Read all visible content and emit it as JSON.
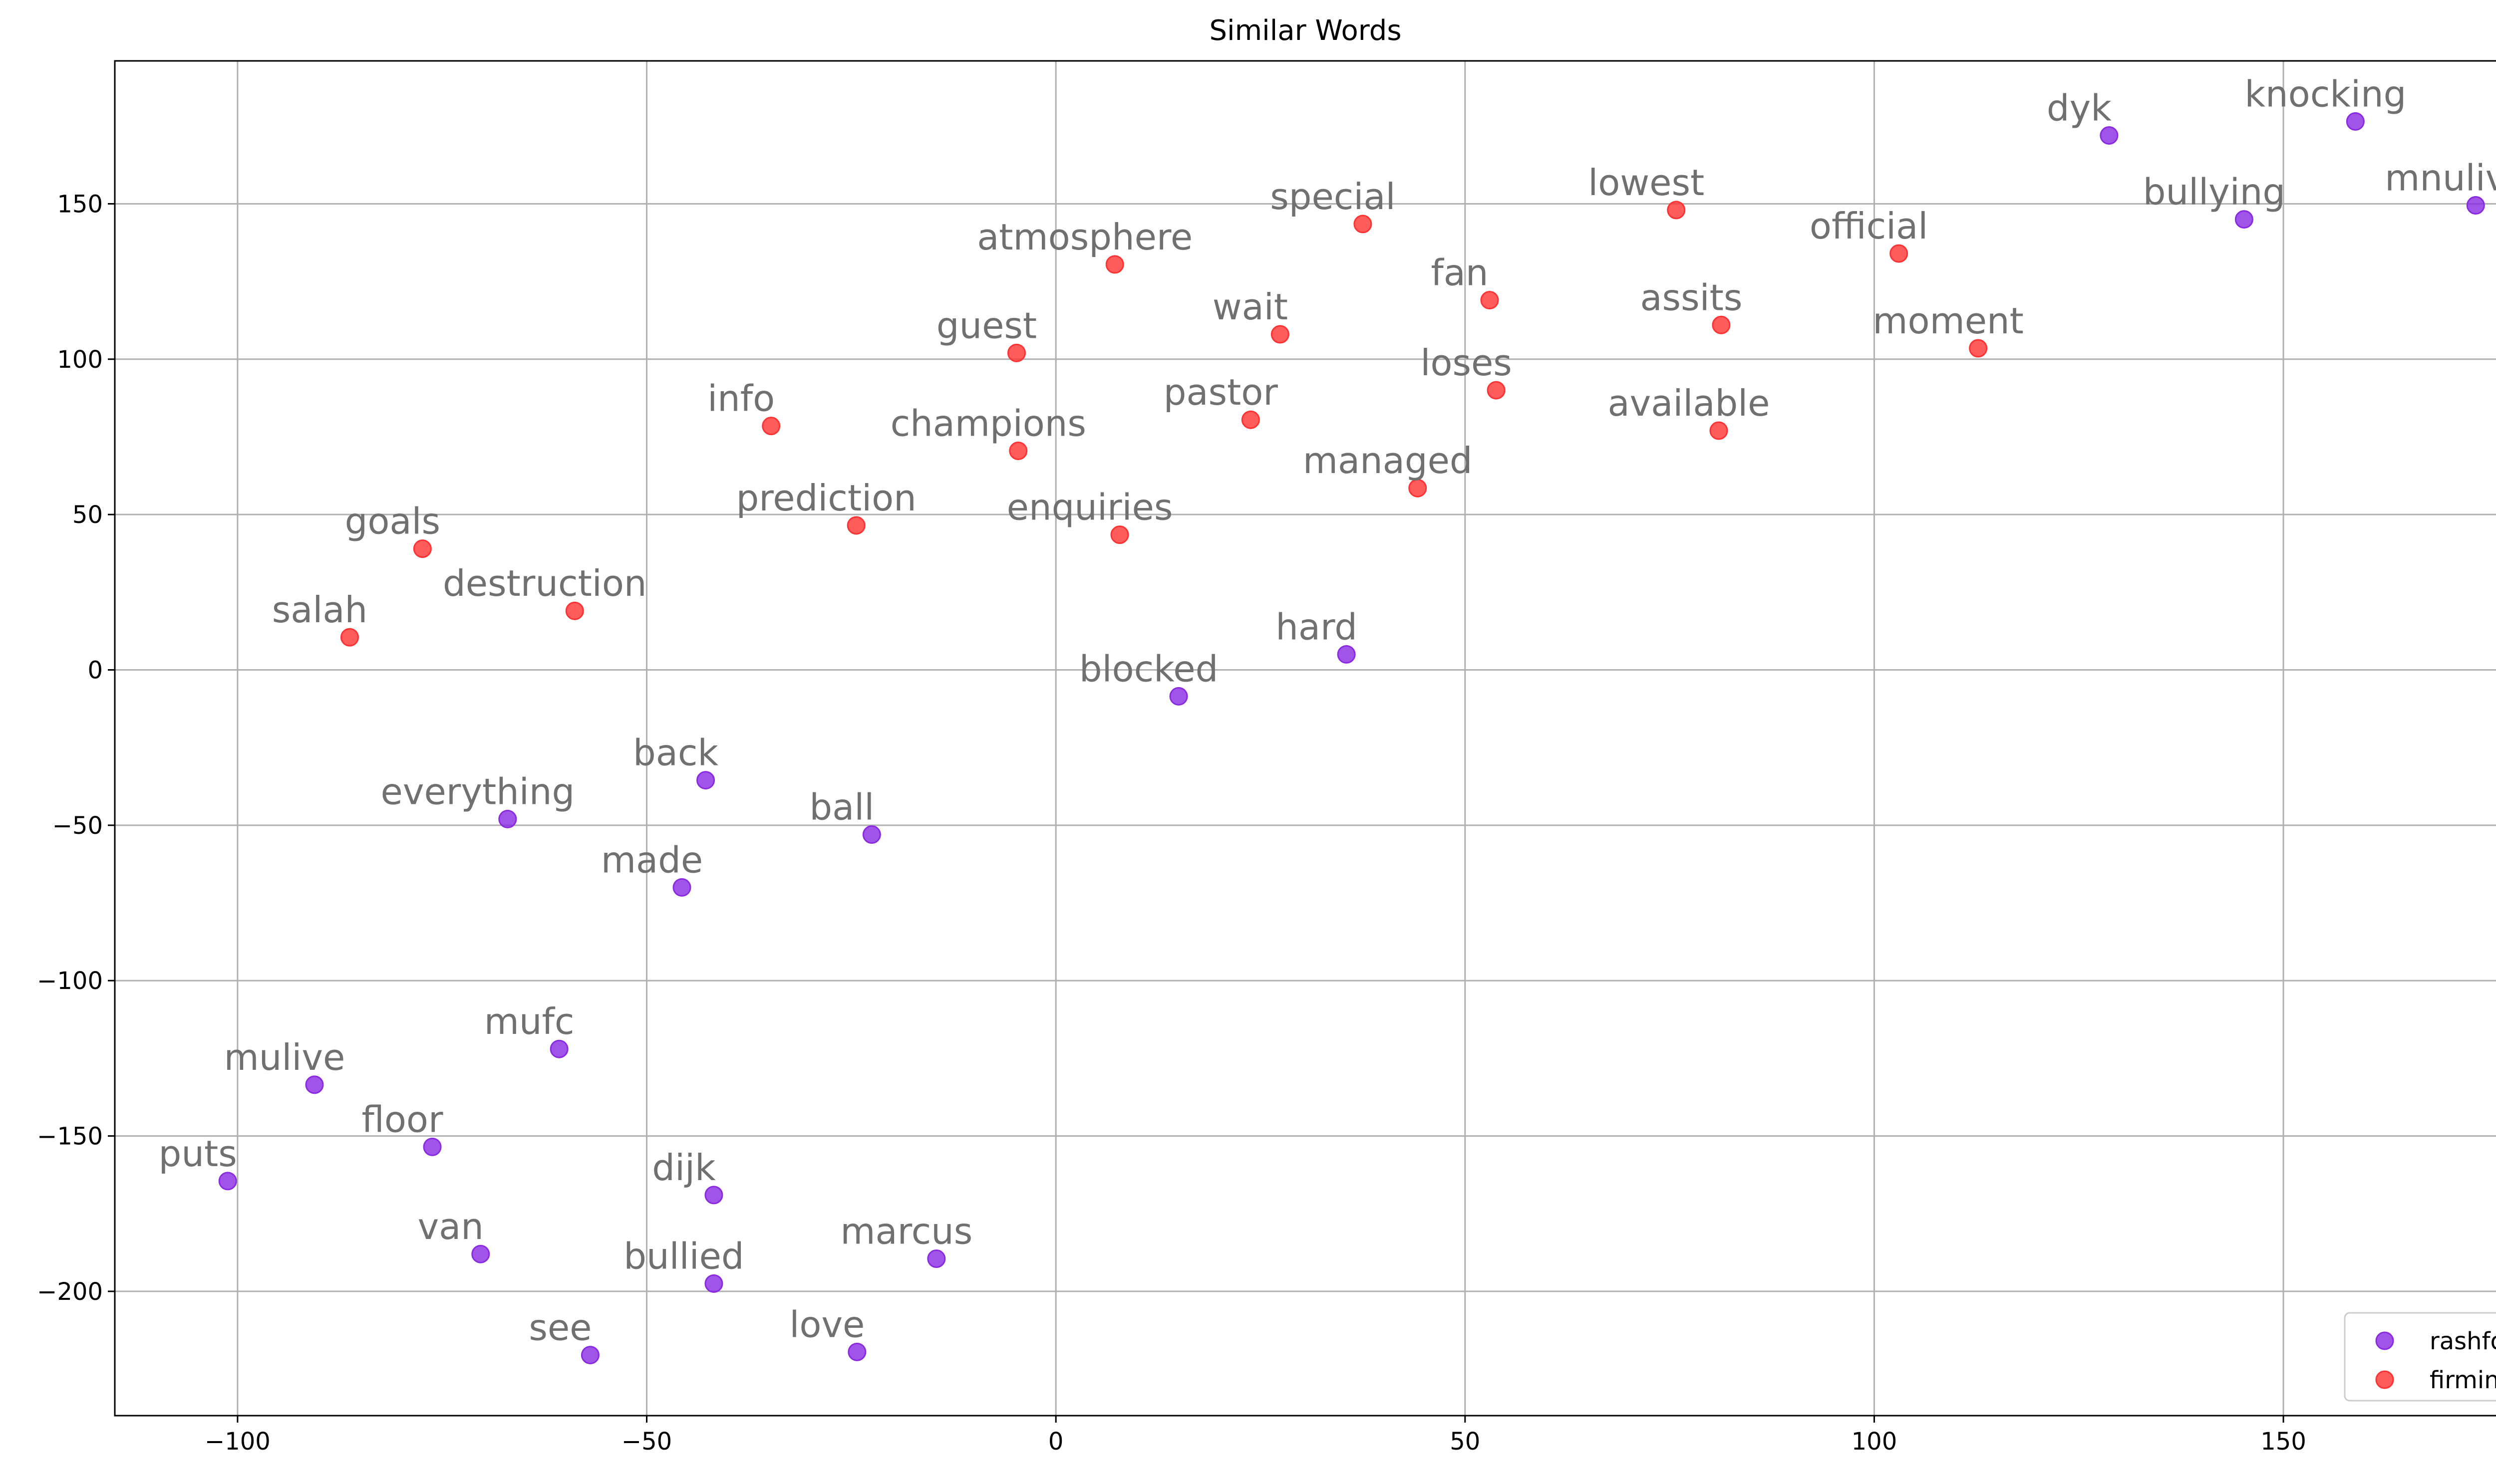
{
  "chart_data": {
    "type": "scatter",
    "title": "Similar Words",
    "xlabel": "",
    "ylabel": "",
    "xlim": [
      -115,
      188
    ],
    "ylim": [
      -240,
      196
    ],
    "xticks": [
      -100,
      -50,
      0,
      50,
      100,
      150
    ],
    "yticks": [
      -200,
      -150,
      -100,
      -50,
      0,
      50,
      100,
      150
    ],
    "xtick_labels": [
      "−100",
      "−50",
      "0",
      "50",
      "100",
      "150"
    ],
    "ytick_labels": [
      "−200",
      "−150",
      "−100",
      "−50",
      "0",
      "50",
      "100",
      "150"
    ],
    "grid": true,
    "legend_position": "lower-right",
    "series": [
      {
        "name": "rashford",
        "color": "#8a2be2",
        "points": [
          {
            "label": "dyk",
            "x": 128.7,
            "y": 172
          },
          {
            "label": "knocking",
            "x": 158.8,
            "y": 176.5
          },
          {
            "label": "bullying",
            "x": 145.2,
            "y": 145
          },
          {
            "label": "mnuliv",
            "x": 173.5,
            "y": 149.5
          },
          {
            "label": "hard",
            "x": 35.5,
            "y": 5
          },
          {
            "label": "blocked",
            "x": 15,
            "y": -8.5
          },
          {
            "label": "back",
            "x": -42.8,
            "y": -35.5
          },
          {
            "label": "everything",
            "x": -67,
            "y": -48
          },
          {
            "label": "ball",
            "x": -22.5,
            "y": -53
          },
          {
            "label": "made",
            "x": -45.7,
            "y": -70
          },
          {
            "label": "mufc",
            "x": -60.7,
            "y": -122
          },
          {
            "label": "mulive",
            "x": -90.6,
            "y": -133.5
          },
          {
            "label": "floor",
            "x": -76.2,
            "y": -153.5
          },
          {
            "label": "puts",
            "x": -101.2,
            "y": -164.5
          },
          {
            "label": "dijk",
            "x": -41.8,
            "y": -169
          },
          {
            "label": "van",
            "x": -70.3,
            "y": -188
          },
          {
            "label": "marcus",
            "x": -14.6,
            "y": -189.5
          },
          {
            "label": "bullied",
            "x": -41.8,
            "y": -197.5
          },
          {
            "label": "see",
            "x": -56.9,
            "y": -220.5
          },
          {
            "label": "love",
            "x": -24.3,
            "y": -219.5
          }
        ]
      },
      {
        "name": "firmino",
        "color": "#ff3333",
        "points": [
          {
            "label": "lowest",
            "x": 75.8,
            "y": 148
          },
          {
            "label": "special",
            "x": 37.5,
            "y": 143.5
          },
          {
            "label": "official",
            "x": 103,
            "y": 134
          },
          {
            "label": "atmosphere",
            "x": 7.2,
            "y": 130.5
          },
          {
            "label": "fan",
            "x": 53,
            "y": 119
          },
          {
            "label": "assits",
            "x": 81.3,
            "y": 111
          },
          {
            "label": "wait",
            "x": 27.4,
            "y": 108
          },
          {
            "label": "moment",
            "x": 112.7,
            "y": 103.5
          },
          {
            "label": "guest",
            "x": -4.8,
            "y": 102
          },
          {
            "label": "loses",
            "x": 53.8,
            "y": 90
          },
          {
            "label": "pastor",
            "x": 23.8,
            "y": 80.5
          },
          {
            "label": "info",
            "x": -34.8,
            "y": 78.5
          },
          {
            "label": "available",
            "x": 81,
            "y": 77
          },
          {
            "label": "champions",
            "x": -4.6,
            "y": 70.5
          },
          {
            "label": "managed",
            "x": 44.2,
            "y": 58.5
          },
          {
            "label": "prediction",
            "x": -24.4,
            "y": 46.5
          },
          {
            "label": "enquiries",
            "x": 7.8,
            "y": 43.5
          },
          {
            "label": "goals",
            "x": -77.4,
            "y": 39
          },
          {
            "label": "destruction",
            "x": -58.8,
            "y": 19
          },
          {
            "label": "salah",
            "x": -86.3,
            "y": 10.5
          }
        ]
      }
    ]
  }
}
